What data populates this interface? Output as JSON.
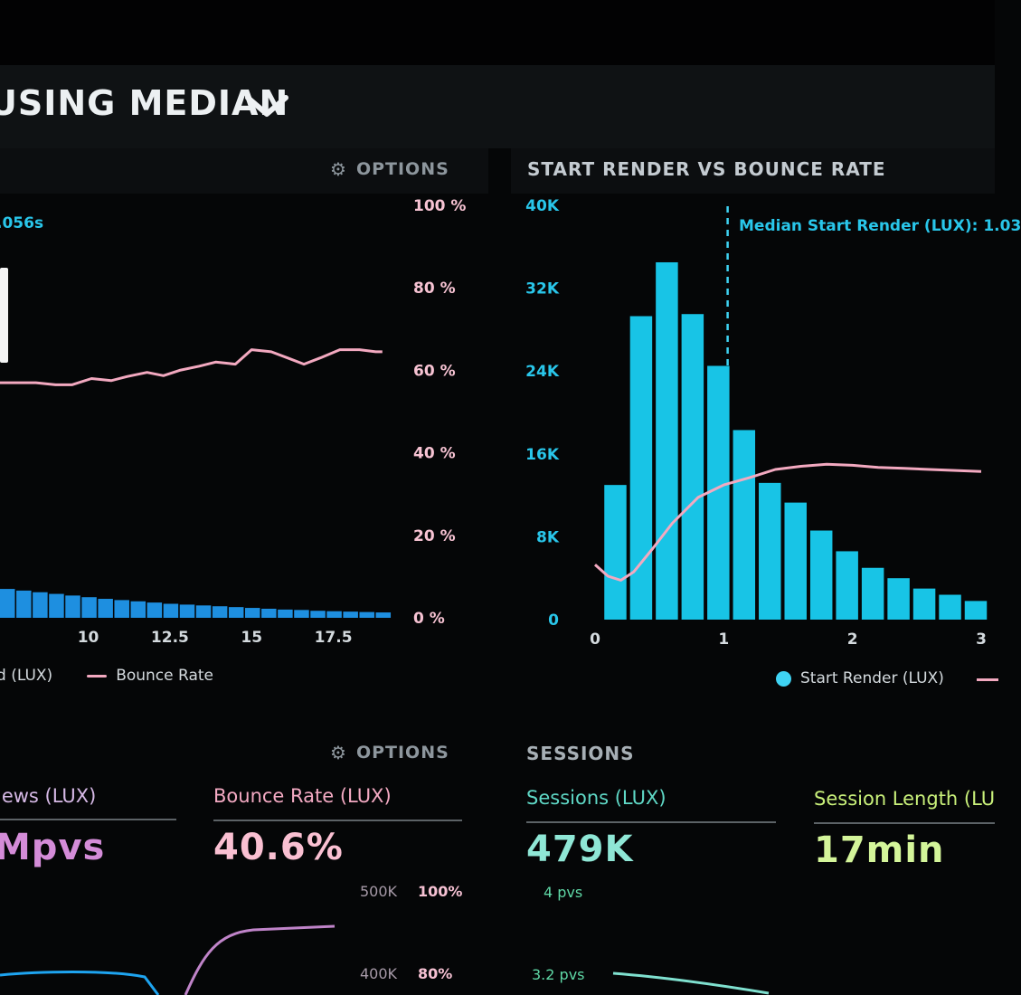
{
  "header": {
    "title": "USING MEDIAN",
    "chevron_icon": "chevron-down-icon"
  },
  "left_panel": {
    "options_label": "OPTIONS",
    "options_icon": "gear-icon",
    "median_note": ".056s",
    "legend": [
      {
        "label": "d (LUX)",
        "swatch": "none"
      },
      {
        "label": "Bounce Rate",
        "swatch": "line",
        "color": "#f3a9c0"
      }
    ]
  },
  "right_panel": {
    "title": "START RENDER VS BOUNCE RATE",
    "median_note": "Median Start Render (LUX): 1.03",
    "legend": [
      {
        "label": "Start Render (LUX)",
        "swatch": "dot",
        "color": "#3fd3f3"
      }
    ]
  },
  "bottom_left": {
    "options_label": "OPTIONS",
    "options_icon": "gear-icon",
    "metrics": [
      {
        "label": "iews (LUX)",
        "value": "Mpvs",
        "label_color": "#d6b9e6",
        "value_color": "#d48cd8"
      },
      {
        "label": "Bounce Rate (LUX)",
        "value": "40.6%",
        "label_color": "#f4aac3",
        "value_color": "#fac0d2"
      }
    ],
    "y_ticks_left": [
      "500K",
      "400K"
    ],
    "y_ticks_right": [
      "100%",
      "80%"
    ]
  },
  "bottom_right": {
    "title": "SESSIONS",
    "metrics": [
      {
        "label": "Sessions (LUX)",
        "value": "479K",
        "label_color": "#5fd8c6",
        "value_color": "#8fe7d6"
      },
      {
        "label": "Session Length (LU",
        "value": "17min",
        "label_color": "#c9f07a",
        "value_color": "#d4f59a"
      }
    ],
    "y_ticks": [
      "4 pvs",
      "3.2 pvs"
    ]
  },
  "chart_data": [
    {
      "type": "bar",
      "title": "",
      "x_ticks": [
        "10",
        "12.5",
        "15",
        "17.5"
      ],
      "xlim": [
        7.3,
        19.2
      ],
      "y_right_ticks": [
        "100 %",
        "80 %",
        "60 %",
        "40 %",
        "20 %",
        "0 %"
      ],
      "series": [
        {
          "name": "Bounce Rate",
          "kind": "line",
          "color": "#f3a9c0",
          "x": [
            7.3,
            7.8,
            8.4,
            9.0,
            9.5,
            10.1,
            10.7,
            11.2,
            11.8,
            12.3,
            12.8,
            13.4,
            13.9,
            14.5,
            15.0,
            15.6,
            16.1,
            16.6,
            17.1,
            17.7,
            18.3,
            18.8,
            19.0
          ],
          "y": [
            57,
            57,
            57,
            56.5,
            56.5,
            58,
            57.5,
            58.5,
            59.5,
            58.7,
            60,
            61,
            62,
            61.5,
            65,
            64.5,
            63,
            61.5,
            63,
            65,
            65,
            64.5,
            64.5
          ]
        },
        {
          "name": "",
          "kind": "bar",
          "color": "#1e8fe0",
          "x": [
            7.3,
            7.8,
            8.3,
            8.8,
            9.3,
            9.8,
            10.3,
            10.8,
            11.3,
            11.8,
            12.3,
            12.8,
            13.3,
            13.8,
            14.3,
            14.8,
            15.3,
            15.8,
            16.3,
            16.8,
            17.3,
            17.8,
            18.3,
            18.8
          ],
          "y": [
            7,
            6.6,
            6.2,
            5.8,
            5.4,
            5.0,
            4.6,
            4.3,
            4.0,
            3.7,
            3.4,
            3.2,
            3.0,
            2.8,
            2.6,
            2.4,
            2.2,
            2.0,
            1.9,
            1.7,
            1.6,
            1.5,
            1.4,
            1.3
          ]
        }
      ]
    },
    {
      "type": "bar",
      "title": "START RENDER VS BOUNCE RATE",
      "x_ticks": [
        "0",
        "1",
        "2",
        "3"
      ],
      "y_ticks": [
        "40K",
        "32K",
        "24K",
        "16K",
        "8K",
        "0"
      ],
      "ylim": [
        0,
        40000
      ],
      "xlim": [
        0,
        3
      ],
      "series": [
        {
          "name": "Start Render (LUX)",
          "kind": "bar",
          "color": "#18c4e6",
          "x": [
            0.2,
            0.4,
            0.6,
            0.8,
            1.0,
            1.2,
            1.4,
            1.6,
            1.8,
            2.0,
            2.2,
            2.4,
            2.6,
            2.8,
            3.0
          ],
          "y": [
            13000,
            29300,
            34500,
            29500,
            24500,
            18300,
            13200,
            11300,
            8600,
            6600,
            5000,
            4000,
            3000,
            2400,
            1800
          ]
        },
        {
          "name": "",
          "kind": "line",
          "color": "#f3a9c0",
          "x": [
            0.0,
            0.1,
            0.2,
            0.3,
            0.45,
            0.6,
            0.8,
            1.0,
            1.2,
            1.4,
            1.6,
            1.8,
            2.0,
            2.2,
            2.4,
            2.6,
            2.8,
            3.0
          ],
          "y": [
            5300,
            4200,
            3800,
            4600,
            6900,
            9300,
            11800,
            13000,
            13700,
            14500,
            14800,
            15000,
            14900,
            14700,
            14600,
            14500,
            14400,
            14300
          ]
        }
      ],
      "median_start_render": 1.03
    }
  ]
}
